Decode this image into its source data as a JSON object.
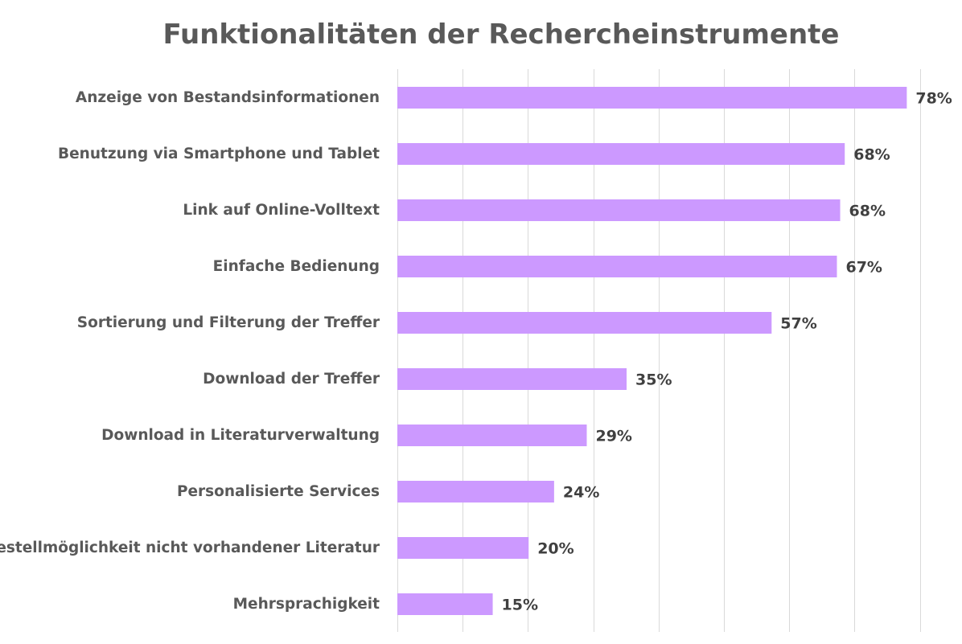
{
  "colors": {
    "bar": "#cc99ff",
    "title": "#595959",
    "category_text": "#595959",
    "value_text": "#404040",
    "grid": "#d9d9d9",
    "background": "#ffffff"
  },
  "chart_data": {
    "type": "bar",
    "orientation": "horizontal",
    "title": "Funktionalitäten der Rechercheinstrumente",
    "xlabel": "",
    "ylabel": "",
    "xlim": [
      0,
      80
    ],
    "grid": true,
    "gridline_step": 10,
    "legend": "none",
    "categories": [
      "Anzeige von Bestandsinformationen",
      "Benutzung via Smartphone und Tablet",
      "Link auf Online-Volltext",
      "Einfache Bedienung",
      "Sortierung und Filterung der Treffer",
      "Download der Treffer",
      "Download in Literaturverwaltung",
      "Personalisierte Services ",
      "Bestellmöglichkeit nicht vorhandener Literatur",
      "Mehrsprachigkeit"
    ],
    "values": [
      78,
      68.5,
      67.8,
      67.3,
      57.3,
      35.1,
      29,
      24,
      20.1,
      14.6
    ],
    "value_labels": [
      "78%",
      "68%",
      "68%",
      "67%",
      "57%",
      "35%",
      "29%",
      "24%",
      "20%",
      "15%"
    ]
  }
}
